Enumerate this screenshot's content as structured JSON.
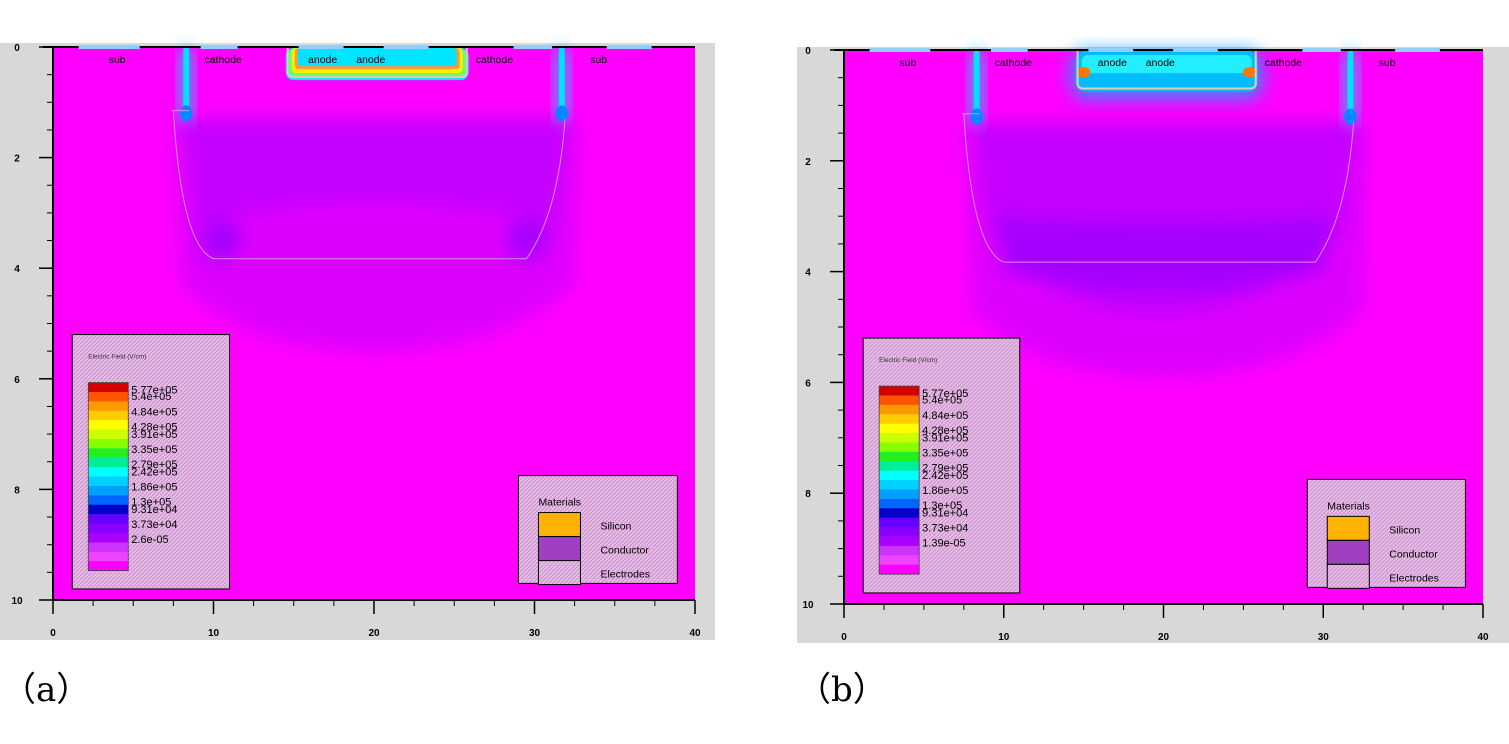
{
  "panels": [
    {
      "caption": "（a）",
      "chart_data": {
        "type": "heatmap",
        "title": "",
        "xlabel": "",
        "ylabel": "",
        "xlim": [
          0,
          40
        ],
        "ylim": [
          0,
          10
        ],
        "x_ticks": [
          "0",
          "10",
          "20",
          "30",
          "40"
        ],
        "y_ticks": [
          "0",
          "2",
          "4",
          "6",
          "8",
          "10"
        ],
        "electrode_labels": [
          {
            "text": "sub",
            "x": 4.0
          },
          {
            "text": "cathode",
            "x": 10.6
          },
          {
            "text": "anode",
            "x": 16.8
          },
          {
            "text": "anode",
            "x": 19.8
          },
          {
            "text": "cathode",
            "x": 27.5
          },
          {
            "text": "sub",
            "x": 34.0
          }
        ],
        "legend": {
          "title": "Electric Field (V/cm)",
          "levels": [
            "5.77e+05",
            "5.4e+05",
            "4.84e+05",
            "4.28e+05",
            "3.91e+05",
            "3.35e+05",
            "2.79e+05",
            "2.42e+05",
            "1.86e+05",
            "1.3e+05",
            "9.31e+04",
            "3.73e+04",
            "2.6e-05"
          ]
        },
        "materials": {
          "title": "Materials",
          "items": [
            {
              "name": "Silicon",
              "color": "#ffb300"
            },
            {
              "name": "Conductor",
              "color": "#a040c0"
            },
            {
              "name": "Electrodes",
              "color": "#b090c0"
            }
          ]
        }
      }
    },
    {
      "caption": "（b）",
      "chart_data": {
        "type": "heatmap",
        "title": "",
        "xlabel": "",
        "ylabel": "",
        "xlim": [
          0,
          40
        ],
        "ylim": [
          0,
          10
        ],
        "x_ticks": [
          "0",
          "10",
          "20",
          "30",
          "40"
        ],
        "y_ticks": [
          "0",
          "2",
          "4",
          "6",
          "8",
          "10"
        ],
        "electrode_labels": [
          {
            "text": "sub",
            "x": 4.0
          },
          {
            "text": "cathode",
            "x": 10.6
          },
          {
            "text": "anode",
            "x": 16.8
          },
          {
            "text": "anode",
            "x": 19.8
          },
          {
            "text": "cathode",
            "x": 27.5
          },
          {
            "text": "sub",
            "x": 34.0
          }
        ],
        "legend": {
          "title": "Electric Field (V/cm)",
          "levels": [
            "5.77e+05",
            "5.4e+05",
            "4.84e+05",
            "4.28e+05",
            "3.91e+05",
            "3.35e+05",
            "2.79e+05",
            "2.42e+05",
            "1.86e+05",
            "1.3e+05",
            "9.31e+04",
            "3.73e+04",
            "1.39e-05"
          ]
        },
        "materials": {
          "title": "Materials",
          "items": [
            {
              "name": "Silicon",
              "color": "#ffb300"
            },
            {
              "name": "Conductor",
              "color": "#a040c0"
            },
            {
              "name": "Electrodes",
              "color": "#b090c0"
            }
          ]
        }
      }
    }
  ],
  "colors": {
    "background_field": "#ff00ff",
    "depletion_light": "#dd00ff",
    "depletion_mid": "#c400ff",
    "depletion_deep": "#a600ff",
    "legend_bg": "#e0b0e0",
    "frame_gray": "#d8d8d8"
  }
}
